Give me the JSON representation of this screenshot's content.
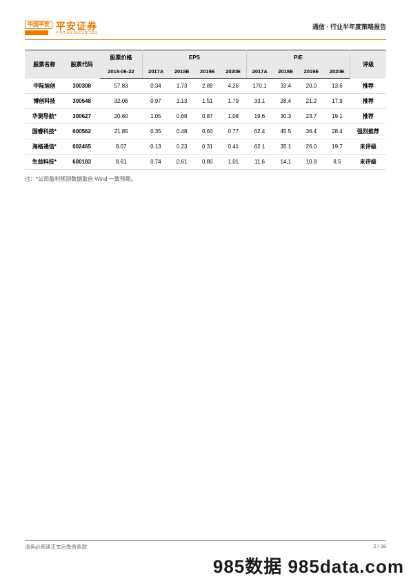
{
  "header": {
    "logo_badge": "中国平安",
    "logo_cn": "平安证券",
    "logo_en": "PING AN SECURITIES",
    "report_title": "通信 · 行业半年度策略报告"
  },
  "table": {
    "group_headers": {
      "name": "股票名称",
      "code": "股票代码",
      "price": "股票价格",
      "eps": "EPS",
      "pe": "P/E",
      "rating": "评级"
    },
    "sub_headers": {
      "price_date": "2018-06-22",
      "y2017A": "2017A",
      "y2018E": "2018E",
      "y2019E": "2019E",
      "y2020E": "2020E"
    },
    "rows": [
      {
        "name": "中际旭创",
        "code": "300308",
        "price": "57.83",
        "eps": [
          "0.34",
          "1.73",
          "2.89",
          "4.26"
        ],
        "pe": [
          "170.1",
          "33.4",
          "20.0",
          "13.6"
        ],
        "rating": "推荐"
      },
      {
        "name": "博创科技",
        "code": "300548",
        "price": "32.06",
        "eps": [
          "0.97",
          "1.13",
          "1.51",
          "1.79"
        ],
        "pe": [
          "33.1",
          "28.4",
          "21.2",
          "17.9"
        ],
        "rating": "推荐"
      },
      {
        "name": "华测导航*",
        "code": "300627",
        "price": "20.60",
        "eps": [
          "1.05",
          "0.68",
          "0.87",
          "1.08"
        ],
        "pe": [
          "19.6",
          "30.3",
          "23.7",
          "19.1"
        ],
        "rating": "推荐"
      },
      {
        "name": "国睿科技*",
        "code": "600562",
        "price": "21.85",
        "eps": [
          "0.35",
          "0.48",
          "0.60",
          "0.77"
        ],
        "pe": [
          "62.4",
          "45.5",
          "36.4",
          "28.4"
        ],
        "rating": "强烈推荐"
      },
      {
        "name": "海格通信*",
        "code": "002465",
        "price": "8.07",
        "eps": [
          "0.13",
          "0.23",
          "0.31",
          "0.41"
        ],
        "pe": [
          "62.1",
          "35.1",
          "26.0",
          "19.7"
        ],
        "rating": "未评级"
      },
      {
        "name": "生益科技*",
        "code": "600183",
        "price": "8.61",
        "eps": [
          "0.74",
          "0.61",
          "0.80",
          "1.01"
        ],
        "pe": [
          "11.6",
          "14.1",
          "10.8",
          "8.5"
        ],
        "rating": "未评级"
      }
    ]
  },
  "footnote": "注：*公司盈利预测数据取自 Wind 一致预期。",
  "footer": {
    "disclaimer": "请务必阅读正文后免责条款",
    "page": "2 / 38"
  },
  "watermark": "985数据 985data.com"
}
